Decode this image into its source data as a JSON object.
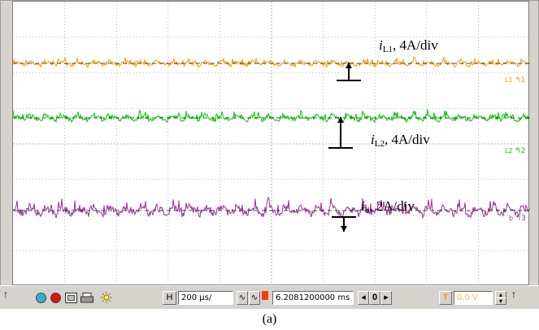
{
  "colors": {
    "trace_l1": "#ff9900",
    "trace_l2": "#00cc00",
    "trace_b": "#993399",
    "grid": "#8a8a8a",
    "marker": "#000000"
  },
  "annotations": {
    "l1": {
      "symbol": "i",
      "sub": "L1",
      "text": ", 4A/div"
    },
    "l2": {
      "symbol": "i",
      "sub": "L2",
      "text": ", 4A/div"
    },
    "b": {
      "symbol": "i",
      "sub": "b",
      "text": ", 2A/div"
    }
  },
  "channel_tags": {
    "l1": {
      "label": "L1",
      "num": "1"
    },
    "l2": {
      "label": "L2",
      "num": "2"
    },
    "b": {
      "label": "b",
      "num": "3"
    }
  },
  "toolbar": {
    "timebase_button": "H",
    "timebase_value": "200 µs/",
    "position_value": "6.2081200000 ms",
    "nav_value": "0",
    "trigger_button": "T",
    "trigger_value": "0.0 V",
    "left_arrow": "◂",
    "right_arrow": "▸",
    "up_arrow": "↑",
    "spin_up": "▴",
    "spin_down": "▾"
  },
  "icons": [
    "pointer-icon",
    "circle-cyan-icon",
    "circle-red-icon",
    "screen-icon",
    "print-icon",
    "sun-icon",
    "waveform-icon",
    "trigger-marker-icon"
  ],
  "caption": "(a)"
}
